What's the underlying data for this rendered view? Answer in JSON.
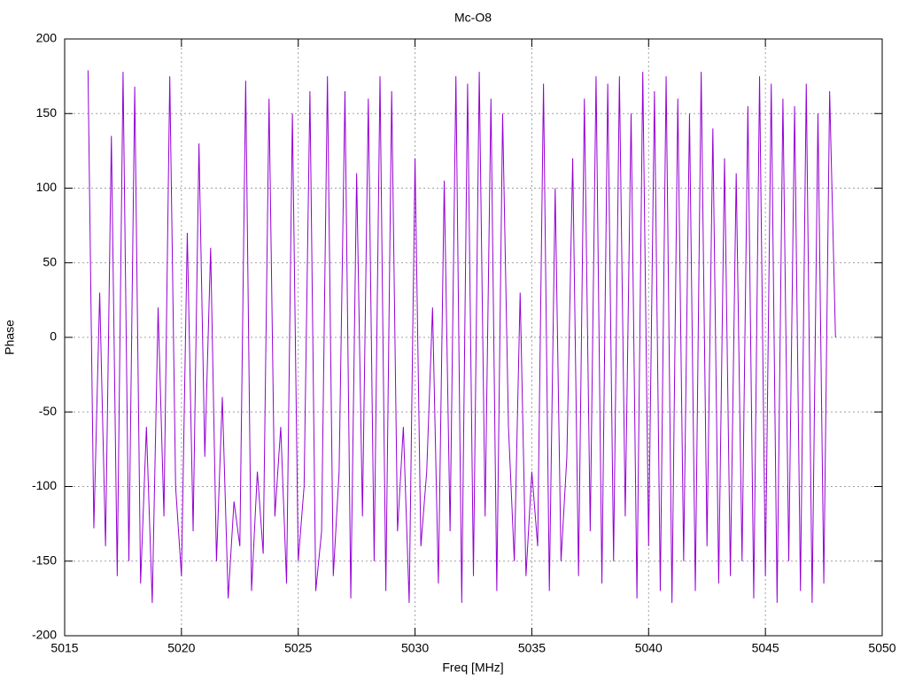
{
  "chart_data": {
    "type": "line",
    "title": "Mc-O8",
    "x_label": "Freq [MHz]",
    "y_label": "Phase",
    "xlim": [
      5015,
      5050
    ],
    "xticks": [
      5015,
      5020,
      5025,
      5030,
      5035,
      5040,
      5045,
      5050
    ],
    "ylim": [
      -200,
      200
    ],
    "yticks": [
      -200,
      -150,
      -100,
      -50,
      0,
      50,
      100,
      150,
      200
    ],
    "grid": true,
    "x": [
      5016,
      5016.25,
      5016.5,
      5016.75,
      5017,
      5017.25,
      5017.5,
      5017.75,
      5018,
      5018.25,
      5018.5,
      5018.75,
      5019,
      5019.25,
      5019.5,
      5019.75,
      5020,
      5020.25,
      5020.5,
      5020.75,
      5021,
      5021.25,
      5021.5,
      5021.75,
      5022,
      5022.25,
      5022.5,
      5022.75,
      5023,
      5023.25,
      5023.5,
      5023.75,
      5024,
      5024.25,
      5024.5,
      5024.75,
      5025,
      5025.25,
      5025.5,
      5025.75,
      5026,
      5026.25,
      5026.5,
      5026.75,
      5027,
      5027.25,
      5027.5,
      5027.75,
      5028,
      5028.25,
      5028.5,
      5028.75,
      5029,
      5029.25,
      5029.5,
      5029.75,
      5030,
      5030.25,
      5030.5,
      5030.75,
      5031,
      5031.25,
      5031.5,
      5031.75,
      5032,
      5032.25,
      5032.5,
      5032.75,
      5033,
      5033.25,
      5033.5,
      5033.75,
      5034,
      5034.25,
      5034.5,
      5034.75,
      5035,
      5035.25,
      5035.5,
      5035.75,
      5036,
      5036.25,
      5036.5,
      5036.75,
      5037,
      5037.25,
      5037.5,
      5037.75,
      5038,
      5038.25,
      5038.5,
      5038.75,
      5039,
      5039.25,
      5039.5,
      5039.75,
      5040,
      5040.25,
      5040.5,
      5040.75,
      5041,
      5041.25,
      5041.5,
      5041.75,
      5042,
      5042.25,
      5042.5,
      5042.75,
      5043,
      5043.25,
      5043.5,
      5043.75,
      5044,
      5044.25,
      5044.5,
      5044.75,
      5045,
      5045.25,
      5045.5,
      5045.75,
      5046,
      5046.25,
      5046.5,
      5046.75,
      5047,
      5047.25,
      5047.5,
      5047.75,
      5048
    ],
    "series": [
      {
        "color": "#9400d3",
        "values": [
          179,
          -128,
          30,
          -140,
          135,
          -160,
          178,
          -150,
          168,
          -165,
          -60,
          -178,
          20,
          -120,
          175,
          -100,
          -160,
          70,
          -130,
          130,
          -80,
          60,
          -150,
          -40,
          -175,
          -110,
          -140,
          172,
          -170,
          -90,
          -145,
          160,
          -120,
          -60,
          -165,
          150,
          -150,
          -100,
          165,
          -170,
          -130,
          175,
          -160,
          -90,
          165,
          -175,
          110,
          -120,
          160,
          -150,
          175,
          -170,
          165,
          -130,
          -60,
          -178,
          120,
          -140,
          -90,
          20,
          -165,
          105,
          -130,
          175,
          -178,
          170,
          -160,
          178,
          -120,
          160,
          -170,
          150,
          -60,
          -150,
          30,
          -160,
          -90,
          -140,
          170,
          -170,
          100,
          -150,
          -80,
          120,
          -160,
          160,
          -130,
          175,
          -165,
          170,
          -150,
          175,
          -120,
          150,
          -175,
          178,
          -140,
          165,
          -170,
          175,
          -178,
          160,
          -150,
          150,
          -170,
          178,
          -140,
          140,
          -165,
          120,
          -160,
          110,
          -150,
          155,
          -175,
          175,
          -160,
          170,
          -178,
          160,
          -150,
          155,
          -170,
          170,
          -178,
          150,
          -165,
          165,
          0
        ]
      }
    ]
  }
}
